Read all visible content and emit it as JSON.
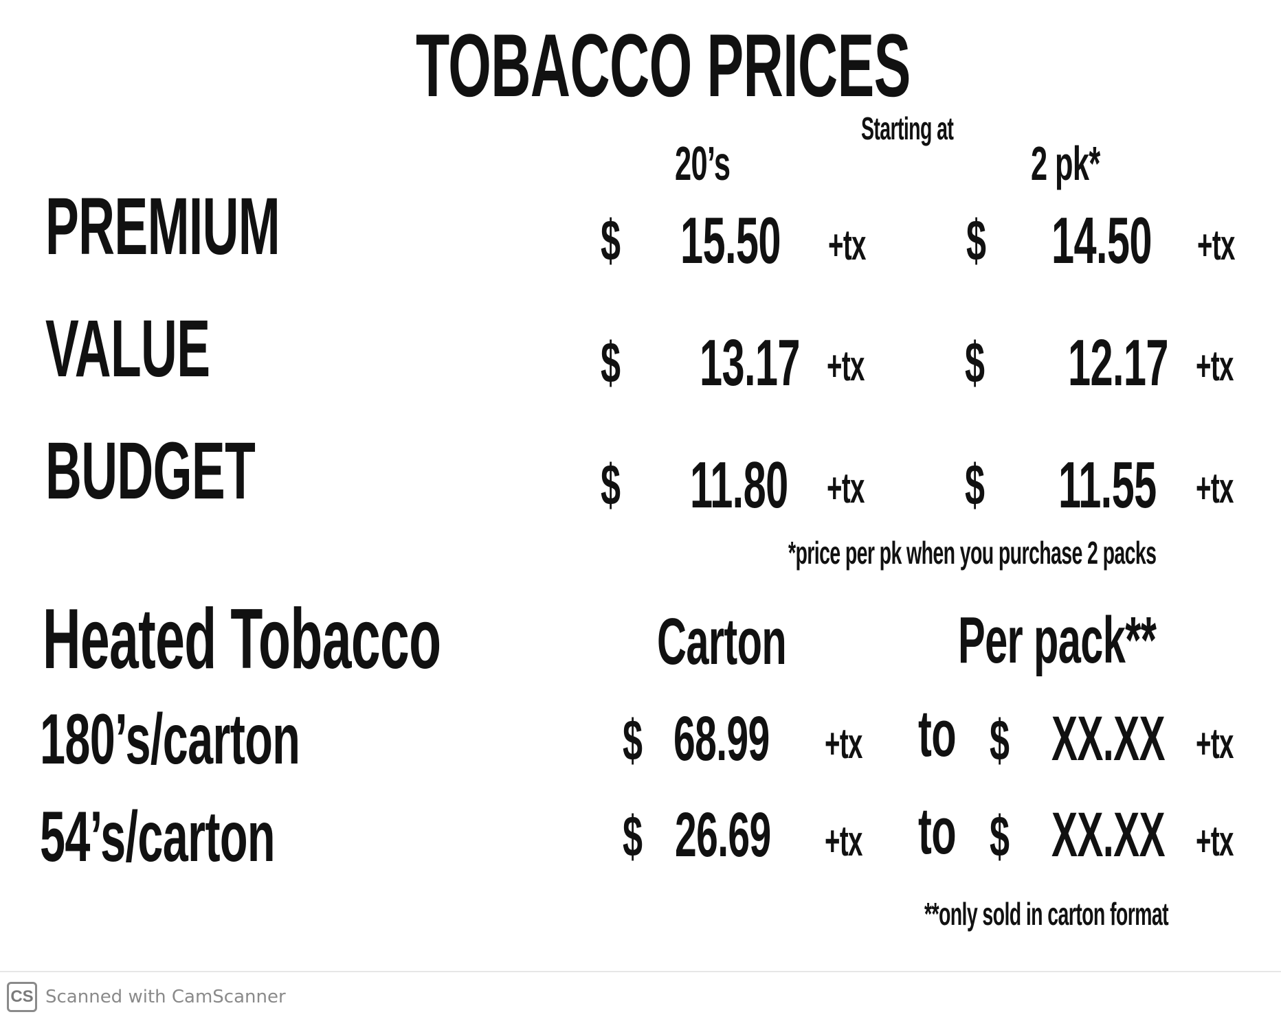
{
  "title": "TOBACCO PRICES",
  "starting_at": "Starting at",
  "columns": {
    "twenties": "20’s",
    "two_pack": "2 pk*"
  },
  "rows": [
    {
      "label": "PREMIUM",
      "dollar1": "$",
      "price_20s": "15.50",
      "tx1": "+tx",
      "dollar2": "$",
      "price_2pk": "14.50",
      "tx2": "+tx"
    },
    {
      "label": "VALUE",
      "dollar1": "$",
      "price_20s": "13.17",
      "tx1": "+tx",
      "dollar2": "$",
      "price_2pk": "12.17",
      "tx2": "+tx"
    },
    {
      "label": "BUDGET",
      "dollar1": "$",
      "price_20s": "11.80",
      "tx1": "+tx",
      "dollar2": "$",
      "price_2pk": "11.55",
      "tx2": "+tx"
    }
  ],
  "note_2pk": "*price per pk when you purchase 2 packs",
  "heated": {
    "heading": "Heated Tobacco",
    "col_carton": "Carton",
    "col_per_pack": "Per pack**",
    "rows": [
      {
        "label": "180’s/carton",
        "dollar1": "$",
        "carton_price": "68.99",
        "tx1": "+tx",
        "to": "to",
        "dollar2": "$",
        "pack_price": "XX.XX",
        "tx2": "+tx"
      },
      {
        "label": "54’s/carton",
        "dollar1": "$",
        "carton_price": "26.69",
        "tx1": "+tx",
        "to": "to",
        "dollar2": "$",
        "pack_price": "XX.XX",
        "tx2": "+tx"
      }
    ],
    "note": "**only sold in carton format"
  },
  "scanner": {
    "logo": "CS",
    "text": "Scanned with CamScanner"
  }
}
